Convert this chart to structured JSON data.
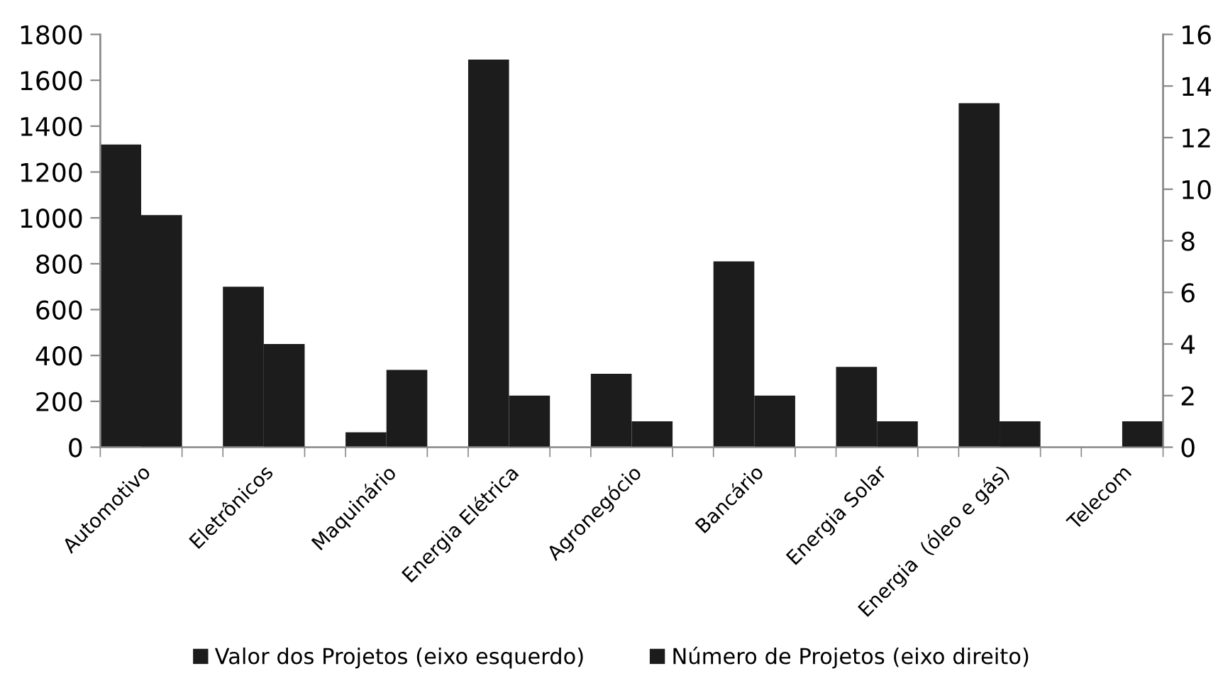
{
  "chart_data": {
    "type": "bar",
    "categories": [
      "Automotivo",
      "Eletrônicos",
      "Maquinário",
      "Energia Elétrica",
      "Agronegócio",
      "Bancário",
      "Energia Solar",
      "Energia  (óleo e gás)",
      "Telecom"
    ],
    "series": [
      {
        "name": "Valor dos Projetos (eixo esquerdo)",
        "color": "#1c1c1c",
        "values": [
          1320,
          700,
          65,
          1690,
          320,
          810,
          350,
          1500,
          null
        ]
      },
      {
        "name": "Número de Projetos (eixo direito)",
        "color": "#1c1c1c",
        "axis": "y2",
        "values": [
          9,
          4,
          3,
          2,
          1,
          2,
          1,
          1,
          1
        ]
      }
    ],
    "ylim": [
      0,
      1800
    ],
    "yticks": [
      0,
      200,
      400,
      600,
      800,
      1000,
      1200,
      1400,
      1600,
      1800
    ],
    "y2lim": [
      0,
      16
    ],
    "y2ticks": [
      0,
      2,
      4,
      6,
      8,
      10,
      12,
      14,
      16
    ],
    "grid": false,
    "legend": "bottom"
  }
}
